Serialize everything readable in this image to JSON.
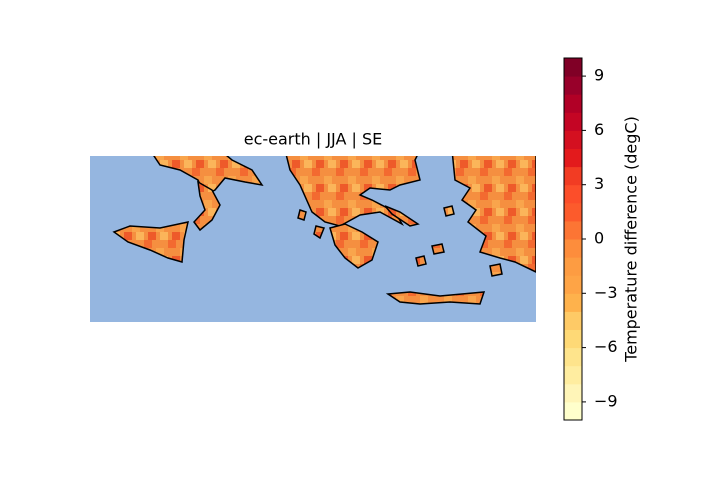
{
  "chart_data": {
    "type": "map",
    "title": "ec-earth | JJA | SE",
    "sea_color": "#95b6e0",
    "land_color": "#f58f40",
    "colorbar": {
      "label": "Temperature difference (degC)",
      "lim": [
        -10,
        10
      ],
      "ticks": [
        {
          "value": -9,
          "label": "−9"
        },
        {
          "value": -6,
          "label": "−6"
        },
        {
          "value": -3,
          "label": "−3"
        },
        0,
        3,
        6,
        9
      ],
      "colors": [
        "#ffffcc",
        "#fff5b8",
        "#ffeda0",
        "#fee48c",
        "#fed976",
        "#feca66",
        "#feb24c",
        "#fea446",
        "#fd9c42",
        "#fd8d3c",
        "#fc7534",
        "#fc5b2c",
        "#fc4e2a",
        "#f23c23",
        "#e31a1c",
        "#d41020",
        "#c40524",
        "#b10026",
        "#98002a",
        "#800026"
      ]
    }
  }
}
